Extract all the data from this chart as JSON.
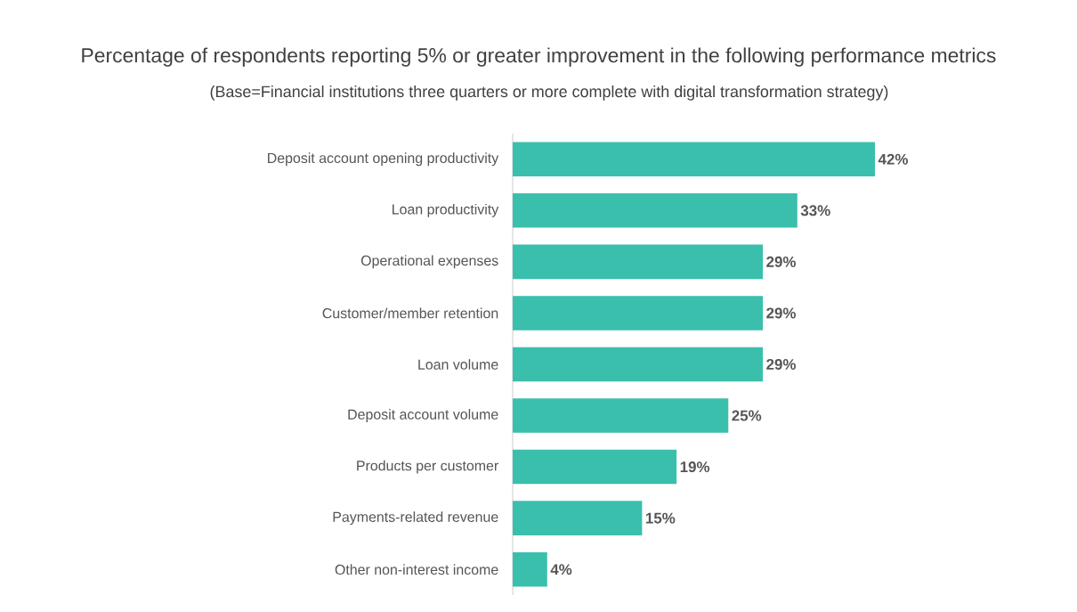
{
  "chart_data": {
    "type": "bar",
    "orientation": "horizontal",
    "title": "Percentage of respondents reporting 5% or greater improvement in the following performance metrics",
    "subtitle": "(Base=Financial institutions three quarters or more complete with digital transformation strategy)",
    "categories": [
      "Deposit account opening productivity",
      "Loan productivity",
      "Operational expenses",
      "Customer/member retention",
      "Loan volume",
      "Deposit account volume",
      "Products per customer",
      "Payments-related revenue",
      "Other non-interest income"
    ],
    "values": [
      42,
      33,
      29,
      29,
      29,
      25,
      19,
      15,
      4
    ],
    "value_labels": [
      "42%",
      "33%",
      "29%",
      "29%",
      "29%",
      "25%",
      "19%",
      "15%",
      "4%"
    ],
    "color": "#3abfad"
  }
}
